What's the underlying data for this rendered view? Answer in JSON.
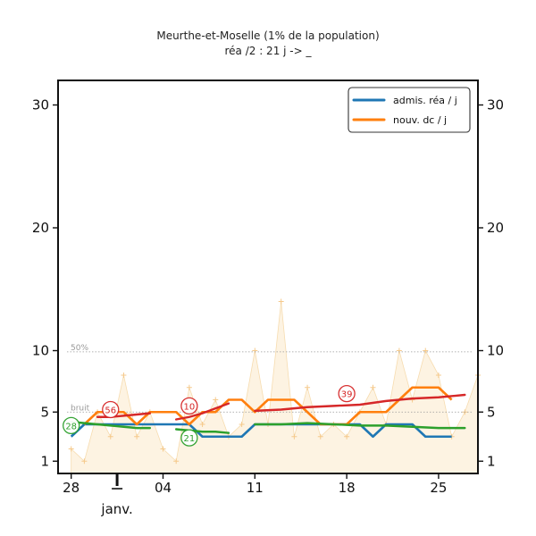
{
  "chart_data": {
    "type": "line",
    "title": "Meurthe-et-Moselle (1% de la population)",
    "subtitle": "réa /2 : 21 j -> _",
    "ylim": [
      0,
      32
    ],
    "yticks": [
      1,
      5,
      10,
      20,
      30
    ],
    "x_range": [
      -1,
      31
    ],
    "xticks": [
      {
        "day": 0,
        "label": "28"
      },
      {
        "day": 7,
        "label": "04"
      },
      {
        "day": 14,
        "label": "11"
      },
      {
        "day": 21,
        "label": "18"
      },
      {
        "day": 28,
        "label": "25"
      }
    ],
    "month_label": "janv.",
    "reference_lines": [
      {
        "y": 9.9,
        "label": "50%"
      },
      {
        "y": 5,
        "label": "bruit"
      }
    ],
    "legend": [
      {
        "label": "admis. réa / j",
        "color": "#1f77b4"
      },
      {
        "label": "nouv. dc / j",
        "color": "#ff7f0e"
      }
    ],
    "raw_daily": {
      "x": [
        0,
        1,
        2,
        3,
        4,
        5,
        6,
        7,
        8,
        9,
        10,
        11,
        12,
        13,
        14,
        15,
        16,
        17,
        18,
        19,
        20,
        21,
        22,
        23,
        24,
        25,
        26,
        27,
        28,
        29,
        30,
        31
      ],
      "values": [
        2,
        1,
        5,
        3,
        8,
        3,
        5,
        2,
        1,
        7,
        4,
        6,
        3,
        4,
        10,
        4,
        14,
        3,
        7,
        3,
        4,
        3,
        5,
        7,
        4,
        10,
        6,
        10,
        8,
        3,
        5,
        8
      ]
    },
    "series": [
      {
        "name": "admis. réa / j",
        "color": "#1f77b4",
        "x": [
          0,
          1,
          2,
          3,
          4,
          5,
          6,
          7,
          8,
          9,
          10,
          11,
          12,
          13,
          14,
          15,
          16,
          17,
          18,
          19,
          20,
          21,
          22,
          23,
          24,
          25,
          26,
          27,
          28,
          29
        ],
        "values": [
          3,
          4,
          4,
          4,
          4,
          4,
          4,
          4,
          4,
          4,
          3,
          3,
          3,
          3,
          4,
          4,
          4,
          4,
          4,
          4,
          4,
          4,
          4,
          3,
          4,
          4,
          4,
          3,
          3,
          3
        ]
      },
      {
        "name": "nouv. dc / j",
        "color": "#ff7f0e",
        "x": [
          1,
          2,
          3,
          4,
          5,
          6,
          7,
          8,
          9,
          10,
          11,
          12,
          13,
          14,
          15,
          16,
          17,
          18,
          19,
          20,
          21,
          22,
          23,
          24,
          25,
          26,
          27,
          28,
          29
        ],
        "values": [
          4,
          5,
          5,
          5,
          4,
          5,
          5,
          5,
          4,
          5,
          5,
          6,
          6,
          5,
          6,
          6,
          6,
          5,
          4,
          4,
          4,
          5,
          5,
          5,
          6,
          7,
          7,
          7,
          6
        ]
      }
    ],
    "trend_segments": [
      {
        "name": "deaths-trend-1",
        "color": "#d62728",
        "label": "56",
        "label_point": [
          3,
          5.2
        ],
        "x": [
          2,
          3,
          4,
          5,
          6
        ],
        "values": [
          4.6,
          4.6,
          4.7,
          4.8,
          4.9
        ]
      },
      {
        "name": "admissions-trend-1",
        "color": "#2ca02c",
        "label": "28",
        "label_point": [
          0,
          3.9
        ],
        "x": [
          0,
          1,
          2,
          3,
          4,
          5,
          6
        ],
        "values": [
          4.2,
          4.1,
          4.0,
          3.9,
          3.8,
          3.7,
          3.7
        ]
      },
      {
        "name": "deaths-trend-2",
        "color": "#d62728",
        "label": "10",
        "label_point": [
          9,
          5.5
        ],
        "x": [
          8,
          9,
          10,
          11,
          12
        ],
        "values": [
          4.4,
          4.6,
          4.9,
          5.3,
          5.7
        ]
      },
      {
        "name": "admissions-trend-2",
        "color": "#2ca02c",
        "label": "21",
        "label_point": [
          9,
          2.9
        ],
        "x": [
          8,
          9,
          10,
          11,
          12
        ],
        "values": [
          3.6,
          3.5,
          3.4,
          3.4,
          3.3
        ]
      },
      {
        "name": "deaths-trend-3",
        "color": "#d62728",
        "label": "39",
        "label_point": [
          21,
          6.5
        ],
        "x": [
          14,
          16,
          18,
          20,
          22,
          24,
          26,
          28,
          30
        ],
        "values": [
          5.1,
          5.2,
          5.4,
          5.5,
          5.6,
          5.9,
          6.1,
          6.2,
          6.4
        ]
      },
      {
        "name": "admissions-trend-3",
        "color": "#2ca02c",
        "label": "",
        "x": [
          14,
          16,
          18,
          20,
          22,
          24,
          26,
          28,
          30
        ],
        "values": [
          4.0,
          4.0,
          4.1,
          4.0,
          3.9,
          3.9,
          3.8,
          3.7,
          3.7
        ]
      }
    ]
  }
}
